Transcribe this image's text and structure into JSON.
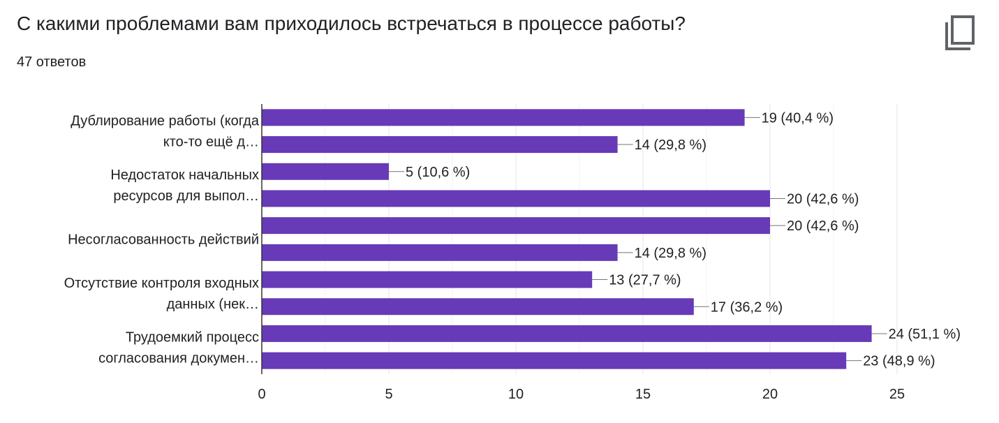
{
  "question": {
    "title": "С какими проблемами вам приходилось встречаться в процессе работы?",
    "responses": "47 ответов",
    "copy_icon": "copy-icon"
  },
  "colors": {
    "bar": "#673ab7",
    "grid": "#e6e6e6",
    "text": "#202124"
  },
  "chart_data": {
    "type": "bar",
    "orientation": "horizontal",
    "category_labels": [
      [
        "Дублирование работы (когда",
        "кто-то ещё д…"
      ],
      [
        "Недостаток начальных",
        "ресурсов для выпол…"
      ],
      [
        "Несогласованность действий"
      ],
      [
        "Отсутствие контроля входных",
        "данных (нек…"
      ],
      [
        "Трудоемкий процесс",
        "согласования докумен…"
      ]
    ],
    "values": [
      19,
      14,
      5,
      20,
      20,
      14,
      13,
      17,
      24,
      23
    ],
    "data_labels": [
      "19 (40,4 %)",
      "14 (29,8 %)",
      "5 (10,6 %)",
      "20 (42,6 %)",
      "20 (42,6 %)",
      "14 (29,8 %)",
      "13 (27,7 %)",
      "17 (36,2 %)",
      "24 (51,1 %)",
      "23 (48,9 %)"
    ],
    "x_ticks": [
      0,
      5,
      10,
      15,
      20,
      25
    ],
    "xlim": [
      0,
      25
    ],
    "grid": true
  }
}
